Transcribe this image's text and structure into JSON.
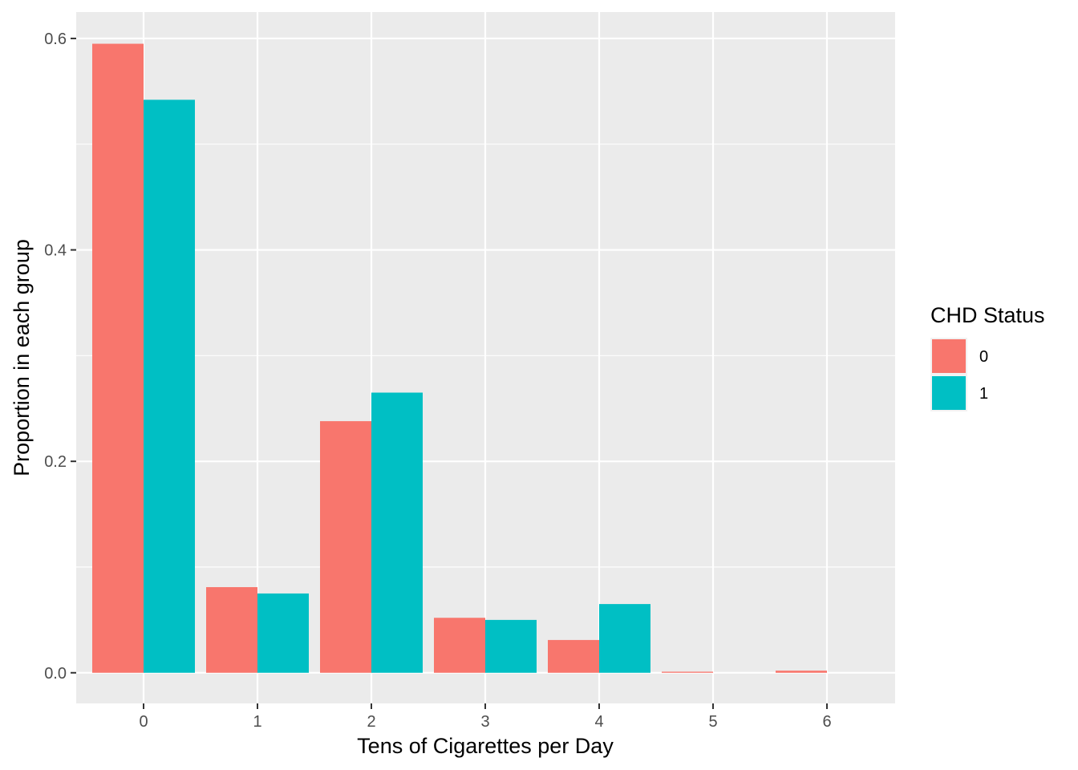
{
  "chart_data": {
    "type": "bar",
    "title": "",
    "xlabel": "Tens of Cigarettes per Day",
    "ylabel": "Proportion in each group",
    "categories": [
      "0",
      "1",
      "2",
      "3",
      "4",
      "5",
      "6"
    ],
    "series": [
      {
        "name": "0",
        "color": "#F8766D",
        "values": [
          0.595,
          0.081,
          0.238,
          0.052,
          0.031,
          0.001,
          0.002
        ]
      },
      {
        "name": "1",
        "color": "#00BFC4",
        "values": [
          0.542,
          0.075,
          0.265,
          0.05,
          0.065,
          0.0,
          0.0
        ]
      }
    ],
    "ylim": [
      -0.029,
      0.625
    ],
    "yticks": [
      "0.0",
      "0.2",
      "0.4",
      "0.6"
    ],
    "ytick_values": [
      0.0,
      0.2,
      0.4,
      0.6
    ],
    "legend": {
      "title": "CHD Status",
      "placement": "right"
    },
    "grid": true,
    "panel_background": "#EBEBEB",
    "grid_color": "#FFFFFF"
  }
}
